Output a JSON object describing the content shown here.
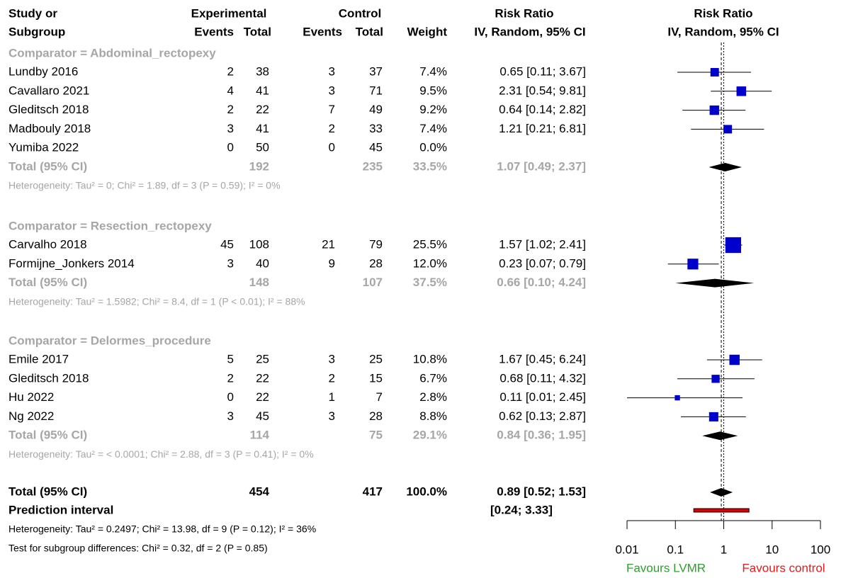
{
  "chart_data": {
    "type": "forest",
    "headers": {
      "study_1": "Study or",
      "study_2": "Subgroup",
      "experimental": "Experimental",
      "control": "Control",
      "events_e": "Events",
      "total_e": "Total",
      "events_c": "Events",
      "total_c": "Total",
      "weight": "Weight",
      "rr_1": "Risk Ratio",
      "rr_2": "IV, Random, 95% CI",
      "plot_1": "Risk Ratio",
      "plot_2": "IV, Random, 95% CI"
    },
    "groups": [
      {
        "title": "Comparator = Abdominal_rectopexy",
        "studies": [
          {
            "study": "Lundby 2016",
            "e_events": 2,
            "e_total": 38,
            "c_events": 3,
            "c_total": 37,
            "weight": 7.4,
            "weight_label": "7.4%",
            "rr": 0.65,
            "lower": 0.11,
            "upper": 3.67,
            "ci_label": "0.65 [0.11; 3.67]"
          },
          {
            "study": "Cavallaro 2021",
            "e_events": 4,
            "e_total": 41,
            "c_events": 3,
            "c_total": 71,
            "weight": 9.5,
            "weight_label": "9.5%",
            "rr": 2.31,
            "lower": 0.54,
            "upper": 9.81,
            "ci_label": "2.31 [0.54; 9.81]"
          },
          {
            "study": "Gleditsch 2018",
            "e_events": 2,
            "e_total": 22,
            "c_events": 7,
            "c_total": 49,
            "weight": 9.2,
            "weight_label": "9.2%",
            "rr": 0.64,
            "lower": 0.14,
            "upper": 2.82,
            "ci_label": "0.64 [0.14; 2.82]"
          },
          {
            "study": "Madbouly 2018",
            "e_events": 3,
            "e_total": 41,
            "c_events": 2,
            "c_total": 33,
            "weight": 7.4,
            "weight_label": "7.4%",
            "rr": 1.21,
            "lower": 0.21,
            "upper": 6.81,
            "ci_label": "1.21 [0.21; 6.81]"
          },
          {
            "study": "Yumiba 2022",
            "e_events": 0,
            "e_total": 50,
            "c_events": 0,
            "c_total": 45,
            "weight": 0.0,
            "weight_label": "0.0%",
            "rr": null,
            "lower": null,
            "upper": null
          }
        ],
        "total": {
          "label": "Total (95% CI)",
          "e_total": 192,
          "c_total": 235,
          "weight_label": "33.5%",
          "rr": 1.07,
          "lower": 0.49,
          "upper": 2.37,
          "ci_label": "1.07 [0.49; 2.37]"
        },
        "heterogeneity": "Heterogeneity: Tau² = 0; Chi² = 1.89, df = 3 (P = 0.59); I² = 0%"
      },
      {
        "title": "Comparator = Resection_rectopexy",
        "studies": [
          {
            "study": "Carvalho 2018",
            "e_events": 45,
            "e_total": 108,
            "c_events": 21,
            "c_total": 79,
            "weight": 25.5,
            "weight_label": "25.5%",
            "rr": 1.57,
            "lower": 1.02,
            "upper": 2.41,
            "ci_label": "1.57 [1.02; 2.41]"
          },
          {
            "study": "Formijne_Jonkers 2014",
            "e_events": 3,
            "e_total": 40,
            "c_events": 9,
            "c_total": 28,
            "weight": 12.0,
            "weight_label": "12.0%",
            "rr": 0.23,
            "lower": 0.07,
            "upper": 0.79,
            "ci_label": "0.23 [0.07; 0.79]"
          }
        ],
        "total": {
          "label": "Total (95% CI)",
          "e_total": 148,
          "c_total": 107,
          "weight_label": "37.5%",
          "rr": 0.66,
          "lower": 0.1,
          "upper": 4.24,
          "ci_label": "0.66 [0.10; 4.24]"
        },
        "heterogeneity": "Heterogeneity: Tau² = 1.5982; Chi² = 8.4, df = 1 (P < 0.01); I² = 88%"
      },
      {
        "title": "Comparator = Delormes_procedure",
        "studies": [
          {
            "study": "Emile 2017",
            "e_events": 5,
            "e_total": 25,
            "c_events": 3,
            "c_total": 25,
            "weight": 10.8,
            "weight_label": "10.8%",
            "rr": 1.67,
            "lower": 0.45,
            "upper": 6.24,
            "ci_label": "1.67 [0.45; 6.24]"
          },
          {
            "study": "Gleditsch 2018",
            "e_events": 2,
            "e_total": 22,
            "c_events": 2,
            "c_total": 15,
            "weight": 6.7,
            "weight_label": "6.7%",
            "rr": 0.68,
            "lower": 0.11,
            "upper": 4.32,
            "ci_label": "0.68 [0.11; 4.32]"
          },
          {
            "study": "Hu 2022",
            "e_events": 0,
            "e_total": 22,
            "c_events": 1,
            "c_total": 7,
            "weight": 2.8,
            "weight_label": "2.8%",
            "rr": 0.11,
            "lower": 0.01,
            "upper": 2.45,
            "ci_label": "0.11 [0.01; 2.45]"
          },
          {
            "study": "Ng 2022",
            "e_events": 3,
            "e_total": 45,
            "c_events": 3,
            "c_total": 28,
            "weight": 8.8,
            "weight_label": "8.8%",
            "rr": 0.62,
            "lower": 0.13,
            "upper": 2.87,
            "ci_label": "0.62 [0.13; 2.87]"
          }
        ],
        "total": {
          "label": "Total (95% CI)",
          "e_total": 114,
          "c_total": 75,
          "weight_label": "29.1%",
          "rr": 0.84,
          "lower": 0.36,
          "upper": 1.95,
          "ci_label": "0.84 [0.36; 1.95]"
        },
        "heterogeneity": "Heterogeneity: Tau² = < 0.0001; Chi² = 2.88, df = 3 (P = 0.41); I² = 0%"
      }
    ],
    "overall": {
      "label": "Total (95% CI)",
      "e_total": 454,
      "c_total": 417,
      "weight_label": "100.0%",
      "rr": 0.89,
      "lower": 0.52,
      "upper": 1.53,
      "ci_label": "0.89 [0.52; 1.53]"
    },
    "prediction": {
      "label": "Prediction interval",
      "lower": 0.24,
      "upper": 3.33,
      "ci_label": "[0.24; 3.33]"
    },
    "heterogeneity": "Heterogeneity: Tau² = 0.2497; Chi² = 13.98, df = 9 (P = 0.12); I² = 36%",
    "subgroup_test": "Test for subgroup differences: Chi² = 0.32, df = 2 (P = 0.85)",
    "log_x": true,
    "xlim": [
      0.01,
      100
    ],
    "xticks": [
      0.01,
      0.1,
      1,
      10,
      100
    ],
    "null_value": 1,
    "favours_left": "Favours LVMR",
    "favours_right": "Favours control",
    "square_color": "#0000cd",
    "prediction_color": "#e00000",
    "favours_left_color": "#2ca02c",
    "favours_right_color": "#e31a1c"
  }
}
